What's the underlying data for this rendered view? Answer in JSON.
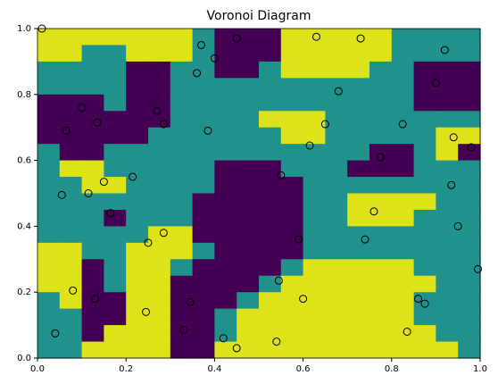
{
  "chart_data": {
    "type": "voronoi-contour",
    "title": "Voronoi Diagram",
    "xlim": [
      0,
      1
    ],
    "ylim": [
      0,
      1
    ],
    "xticks": [
      {
        "value": 0,
        "label": "0.0"
      },
      {
        "value": 0.2,
        "label": "0.2"
      },
      {
        "value": 0.4,
        "label": "0.4"
      },
      {
        "value": 0.6,
        "label": "0.6"
      },
      {
        "value": 0.8,
        "label": "0.8"
      },
      {
        "value": 1,
        "label": "1.0"
      }
    ],
    "yticks": [
      {
        "value": 0,
        "label": "0.0"
      },
      {
        "value": 0.2,
        "label": "0.2"
      },
      {
        "value": 0.4,
        "label": "0.4"
      },
      {
        "value": 0.6,
        "label": "0.6"
      },
      {
        "value": 0.8,
        "label": "0.8"
      },
      {
        "value": 1,
        "label": "1.0"
      }
    ],
    "colors": [
      "#440154",
      "#21918c",
      "#dde318"
    ],
    "z": [
      [
        2,
        2,
        2,
        2,
        2,
        2,
        2,
        1,
        0,
        0,
        0,
        2,
        2,
        2,
        2,
        2,
        1,
        1,
        1,
        1
      ],
      [
        2,
        2,
        1,
        1,
        2,
        2,
        2,
        1,
        0,
        0,
        0,
        2,
        2,
        2,
        2,
        2,
        1,
        1,
        1,
        1
      ],
      [
        1,
        1,
        1,
        1,
        0,
        0,
        1,
        1,
        0,
        0,
        1,
        2,
        2,
        2,
        2,
        1,
        1,
        0,
        0,
        0
      ],
      [
        1,
        1,
        1,
        1,
        0,
        0,
        1,
        1,
        1,
        1,
        1,
        1,
        1,
        1,
        1,
        1,
        1,
        0,
        0,
        0
      ],
      [
        0,
        0,
        0,
        1,
        0,
        0,
        1,
        1,
        1,
        1,
        1,
        1,
        1,
        1,
        1,
        1,
        1,
        0,
        0,
        0
      ],
      [
        0,
        0,
        0,
        0,
        0,
        0,
        1,
        1,
        1,
        1,
        2,
        2,
        2,
        1,
        1,
        1,
        1,
        1,
        1,
        1
      ],
      [
        0,
        0,
        0,
        0,
        0,
        1,
        1,
        1,
        1,
        1,
        1,
        2,
        2,
        1,
        1,
        1,
        1,
        1,
        2,
        2
      ],
      [
        1,
        0,
        0,
        1,
        1,
        1,
        1,
        1,
        1,
        1,
        1,
        1,
        1,
        1,
        1,
        0,
        0,
        1,
        2,
        0
      ],
      [
        1,
        2,
        2,
        1,
        1,
        1,
        1,
        1,
        0,
        0,
        0,
        1,
        1,
        1,
        0,
        0,
        0,
        1,
        1,
        1
      ],
      [
        1,
        1,
        2,
        2,
        1,
        1,
        1,
        1,
        0,
        0,
        0,
        0,
        1,
        1,
        1,
        1,
        1,
        1,
        1,
        1
      ],
      [
        1,
        1,
        1,
        1,
        1,
        1,
        1,
        0,
        0,
        0,
        0,
        0,
        1,
        1,
        2,
        2,
        2,
        2,
        1,
        1
      ],
      [
        1,
        1,
        1,
        0,
        1,
        1,
        1,
        0,
        0,
        0,
        0,
        0,
        1,
        1,
        2,
        2,
        2,
        1,
        1,
        1
      ],
      [
        1,
        1,
        1,
        1,
        1,
        2,
        2,
        0,
        0,
        0,
        0,
        0,
        1,
        1,
        1,
        1,
        1,
        1,
        1,
        1
      ],
      [
        2,
        2,
        1,
        1,
        2,
        2,
        2,
        1,
        0,
        0,
        0,
        0,
        1,
        1,
        1,
        1,
        1,
        1,
        1,
        1
      ],
      [
        2,
        2,
        0,
        1,
        2,
        2,
        1,
        0,
        0,
        0,
        0,
        1,
        2,
        2,
        2,
        2,
        2,
        1,
        1,
        1
      ],
      [
        2,
        2,
        0,
        1,
        2,
        2,
        0,
        0,
        0,
        0,
        1,
        2,
        2,
        2,
        2,
        2,
        2,
        2,
        1,
        1
      ],
      [
        1,
        2,
        0,
        0,
        2,
        2,
        0,
        0,
        0,
        1,
        2,
        2,
        2,
        2,
        2,
        2,
        2,
        1,
        1,
        1
      ],
      [
        1,
        1,
        0,
        0,
        2,
        2,
        0,
        0,
        1,
        2,
        2,
        2,
        2,
        2,
        2,
        2,
        2,
        1,
        1,
        1
      ],
      [
        1,
        1,
        0,
        2,
        2,
        2,
        0,
        0,
        1,
        2,
        2,
        2,
        2,
        2,
        2,
        2,
        2,
        2,
        1,
        1
      ],
      [
        1,
        1,
        2,
        2,
        2,
        2,
        0,
        0,
        2,
        2,
        2,
        2,
        2,
        2,
        2,
        2,
        2,
        2,
        2,
        1
      ]
    ],
    "x": [
      0.01,
      0.37,
      0.45,
      0.63,
      0.73,
      0.92,
      0.4,
      0.36,
      0.9,
      0.68,
      0.1,
      0.135,
      0.27,
      0.285,
      0.065,
      0.385,
      0.65,
      0.825,
      0.615,
      0.94,
      0.98,
      0.775,
      0.55,
      0.215,
      0.15,
      0.055,
      0.115,
      0.935,
      0.165,
      0.76,
      0.95,
      0.285,
      0.59,
      0.74,
      0.25,
      0.995,
      0.545,
      0.08,
      0.13,
      0.345,
      0.6,
      0.86,
      0.875,
      0.245,
      0.04,
      0.33,
      0.42,
      0.835,
      0.45,
      0.54
    ],
    "y": [
      1.0,
      0.95,
      0.97,
      0.975,
      0.97,
      0.935,
      0.91,
      0.865,
      0.835,
      0.81,
      0.76,
      0.715,
      0.75,
      0.71,
      0.69,
      0.69,
      0.71,
      0.71,
      0.645,
      0.67,
      0.64,
      0.61,
      0.555,
      0.55,
      0.535,
      0.495,
      0.5,
      0.525,
      0.44,
      0.445,
      0.4,
      0.38,
      0.36,
      0.36,
      0.35,
      0.27,
      0.235,
      0.205,
      0.18,
      0.17,
      0.18,
      0.18,
      0.165,
      0.14,
      0.075,
      0.085,
      0.06,
      0.08,
      0.03,
      0.05
    ],
    "marker_edge": "#000000"
  }
}
